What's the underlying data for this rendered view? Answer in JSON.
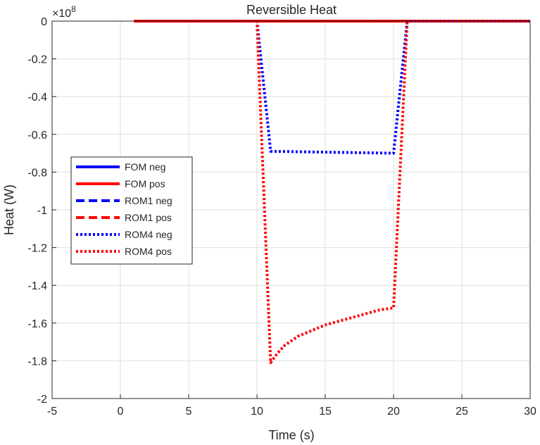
{
  "chart_data": {
    "type": "line",
    "title": "Reversible Heat",
    "xlabel": "Time (s)",
    "ylabel": "Heat (W)",
    "y_exponent_label": "×10",
    "y_exponent_power": "8",
    "xlim": [
      -5,
      30
    ],
    "ylim": [
      -2,
      0
    ],
    "xticks": [
      -5,
      0,
      5,
      10,
      15,
      20,
      25,
      30
    ],
    "xtick_labels": [
      "-5",
      "0",
      "5",
      "10",
      "15",
      "20",
      "25",
      "30"
    ],
    "yticks": [
      0,
      -0.2,
      -0.4,
      -0.6,
      -0.8,
      -1,
      -1.2,
      -1.4,
      -1.6,
      -1.8,
      -2
    ],
    "ytick_labels": [
      "0",
      "-0.2",
      "-0.4",
      "-0.6",
      "-0.8",
      "-1",
      "-1.2",
      "-1.4",
      "-1.6",
      "-1.8",
      "-2"
    ],
    "grid": true,
    "legend_position": "middle-left",
    "series": [
      {
        "name": "FOM neg",
        "color": "#0000ff",
        "style": "solid",
        "x": [
          1,
          30
        ],
        "y": [
          0,
          0
        ]
      },
      {
        "name": "FOM pos",
        "color": "#ff0000",
        "style": "solid",
        "x": [
          1,
          30
        ],
        "y": [
          0,
          0
        ]
      },
      {
        "name": "ROM1 neg",
        "color": "#0000ff",
        "style": "dashed",
        "x": [
          1,
          30
        ],
        "y": [
          0,
          0
        ]
      },
      {
        "name": "ROM1 pos",
        "color": "#ff0000",
        "style": "dashed",
        "x": [
          1,
          30
        ],
        "y": [
          0,
          0
        ]
      },
      {
        "name": "ROM4 neg",
        "color": "#0000ff",
        "style": "dotted",
        "x": [
          1,
          10,
          11,
          20,
          21,
          30
        ],
        "y": [
          0,
          0,
          -0.69,
          -0.7,
          0,
          0
        ]
      },
      {
        "name": "ROM4 pos",
        "color": "#ff0000",
        "style": "dotted",
        "x": [
          1,
          10,
          11,
          11.5,
          12,
          13,
          14,
          15,
          16,
          17,
          18,
          19,
          20,
          21,
          30
        ],
        "y": [
          0,
          0,
          -1.81,
          -1.76,
          -1.72,
          -1.67,
          -1.64,
          -1.61,
          -1.59,
          -1.57,
          -1.55,
          -1.53,
          -1.52,
          0,
          0
        ]
      }
    ]
  }
}
